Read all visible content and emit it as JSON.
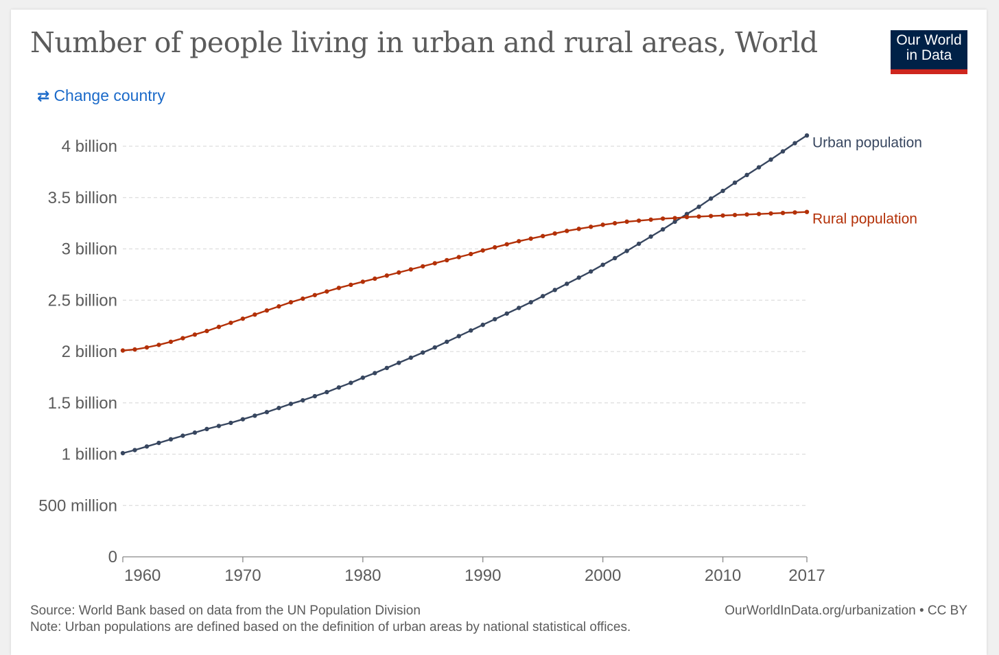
{
  "header": {
    "title": "Number of people living in urban and rural areas, World",
    "logo_line1": "Our World",
    "logo_line2": "in Data",
    "change_country": "Change country"
  },
  "footer": {
    "source": "Source: World Bank based on data from the UN Population Division",
    "note": "Note: Urban populations are defined based on the definition of urban areas by national statistical offices.",
    "link": "OurWorldInData.org/urbanization • CC BY"
  },
  "colors": {
    "urban": "#37465f",
    "rural": "#b33007",
    "grid": "#dddddd",
    "axis_text": "#5b5b5b"
  },
  "chart_data": {
    "type": "line",
    "title": "Number of people living in urban and rural areas, World",
    "xlabel": "",
    "ylabel": "",
    "xlim": [
      1960,
      2017
    ],
    "ylim": [
      0,
      4200000000
    ],
    "x_ticks": [
      {
        "value": 1960,
        "label": "1960"
      },
      {
        "value": 1970,
        "label": "1970"
      },
      {
        "value": 1980,
        "label": "1980"
      },
      {
        "value": 1990,
        "label": "1990"
      },
      {
        "value": 2000,
        "label": "2000"
      },
      {
        "value": 2010,
        "label": "2010"
      },
      {
        "value": 2017,
        "label": "2017"
      }
    ],
    "y_ticks": [
      {
        "value": 0,
        "label": "0"
      },
      {
        "value": 500000000,
        "label": "500 million"
      },
      {
        "value": 1000000000,
        "label": "1 billion"
      },
      {
        "value": 1500000000,
        "label": "1.5 billion"
      },
      {
        "value": 2000000000,
        "label": "2 billion"
      },
      {
        "value": 2500000000,
        "label": "2.5 billion"
      },
      {
        "value": 3000000000,
        "label": "3 billion"
      },
      {
        "value": 3500000000,
        "label": "3.5 billion"
      },
      {
        "value": 4000000000,
        "label": "4 billion"
      }
    ],
    "grid": "horizontal dashed",
    "legend": "line end labels",
    "x": [
      1960,
      1961,
      1962,
      1963,
      1964,
      1965,
      1966,
      1967,
      1968,
      1969,
      1970,
      1971,
      1972,
      1973,
      1974,
      1975,
      1976,
      1977,
      1978,
      1979,
      1980,
      1981,
      1982,
      1983,
      1984,
      1985,
      1986,
      1987,
      1988,
      1989,
      1990,
      1991,
      1992,
      1993,
      1994,
      1995,
      1996,
      1997,
      1998,
      1999,
      2000,
      2001,
      2002,
      2003,
      2004,
      2005,
      2006,
      2007,
      2008,
      2009,
      2010,
      2011,
      2012,
      2013,
      2014,
      2015,
      2016,
      2017
    ],
    "series": [
      {
        "name": "Urban population",
        "color": "#37465f",
        "values": [
          1010000000,
          1040000000,
          1075000000,
          1110000000,
          1145000000,
          1180000000,
          1210000000,
          1245000000,
          1275000000,
          1305000000,
          1340000000,
          1375000000,
          1410000000,
          1450000000,
          1490000000,
          1525000000,
          1565000000,
          1605000000,
          1650000000,
          1695000000,
          1745000000,
          1790000000,
          1840000000,
          1890000000,
          1940000000,
          1990000000,
          2040000000,
          2095000000,
          2150000000,
          2205000000,
          2260000000,
          2315000000,
          2370000000,
          2425000000,
          2480000000,
          2540000000,
          2600000000,
          2660000000,
          2720000000,
          2780000000,
          2845000000,
          2910000000,
          2980000000,
          3050000000,
          3120000000,
          3190000000,
          3265000000,
          3340000000,
          3410000000,
          3490000000,
          3565000000,
          3645000000,
          3720000000,
          3795000000,
          3870000000,
          3950000000,
          4030000000,
          4105000000
        ]
      },
      {
        "name": "Rural population",
        "color": "#b33007",
        "values": [
          2010000000,
          2020000000,
          2040000000,
          2065000000,
          2095000000,
          2130000000,
          2165000000,
          2200000000,
          2240000000,
          2280000000,
          2320000000,
          2360000000,
          2400000000,
          2440000000,
          2480000000,
          2515000000,
          2550000000,
          2585000000,
          2620000000,
          2650000000,
          2680000000,
          2710000000,
          2740000000,
          2770000000,
          2800000000,
          2830000000,
          2860000000,
          2890000000,
          2920000000,
          2950000000,
          2985000000,
          3015000000,
          3045000000,
          3075000000,
          3100000000,
          3125000000,
          3150000000,
          3175000000,
          3195000000,
          3215000000,
          3235000000,
          3250000000,
          3265000000,
          3275000000,
          3285000000,
          3295000000,
          3300000000,
          3310000000,
          3315000000,
          3320000000,
          3325000000,
          3330000000,
          3335000000,
          3340000000,
          3345000000,
          3350000000,
          3355000000,
          3360000000
        ]
      }
    ]
  }
}
